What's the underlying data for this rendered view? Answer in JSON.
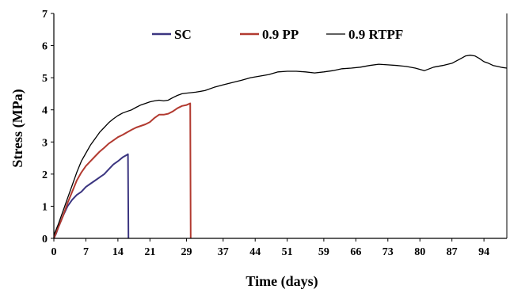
{
  "chart_data": {
    "type": "line",
    "title": "",
    "xlabel": "Time (days)",
    "ylabel": "Stress (MPa)",
    "xlim": [
      0,
      99
    ],
    "ylim": [
      0,
      7
    ],
    "x_ticks": [
      "0",
      "7",
      "14",
      "21",
      "29",
      "37",
      "44",
      "51",
      "59",
      "66",
      "73",
      "80",
      "87",
      "94"
    ],
    "y_ticks": [
      "0",
      "1",
      "2",
      "3",
      "4",
      "5",
      "6",
      "7"
    ],
    "grid": false,
    "legend_position": "top",
    "series": [
      {
        "name": "SC",
        "color": "#3b3580",
        "x": [
          0,
          0.5,
          1,
          2,
          3,
          4,
          5,
          6,
          7,
          8,
          9,
          10,
          11,
          12,
          13,
          14,
          15,
          16,
          16.2,
          16.3
        ],
        "y": [
          0,
          0.15,
          0.35,
          0.7,
          1.0,
          1.2,
          1.35,
          1.45,
          1.6,
          1.7,
          1.8,
          1.9,
          2.0,
          2.15,
          2.3,
          2.4,
          2.52,
          2.6,
          2.62,
          0
        ]
      },
      {
        "name": "0.9 PP",
        "color": "#b23a30",
        "x": [
          0,
          1,
          2,
          3,
          4,
          5,
          6,
          7,
          8,
          9,
          10,
          11,
          12,
          13,
          14,
          15,
          16,
          17,
          18,
          19,
          20,
          21,
          22,
          23,
          24,
          25,
          26,
          27,
          28,
          29,
          29.8,
          29.9
        ],
        "y": [
          0,
          0.35,
          0.7,
          1.1,
          1.45,
          1.8,
          2.05,
          2.25,
          2.4,
          2.55,
          2.7,
          2.82,
          2.95,
          3.05,
          3.15,
          3.22,
          3.3,
          3.38,
          3.45,
          3.5,
          3.55,
          3.62,
          3.75,
          3.85,
          3.85,
          3.88,
          3.95,
          4.05,
          4.12,
          4.15,
          4.2,
          0
        ]
      },
      {
        "name": "0.9 RTPF",
        "color": "#000000",
        "x": [
          0,
          1,
          2,
          3,
          4,
          5,
          6,
          7,
          8,
          9,
          10,
          11,
          12,
          13,
          14,
          15,
          16,
          17,
          18,
          19,
          20,
          21,
          22,
          23,
          24,
          25,
          26,
          27,
          28,
          29,
          31,
          33,
          35,
          37,
          39,
          41,
          43,
          45,
          47,
          49,
          51,
          53,
          55,
          57,
          59,
          61,
          63,
          65,
          67,
          69,
          71,
          73,
          75,
          77,
          79,
          81,
          83,
          85,
          87,
          89,
          90,
          91,
          92,
          93,
          94,
          95,
          96,
          97,
          98,
          99
        ],
        "y": [
          0.1,
          0.45,
          0.85,
          1.25,
          1.65,
          2.05,
          2.4,
          2.65,
          2.9,
          3.1,
          3.3,
          3.45,
          3.6,
          3.72,
          3.82,
          3.9,
          3.95,
          4.0,
          4.08,
          4.15,
          4.2,
          4.25,
          4.28,
          4.3,
          4.28,
          4.3,
          4.38,
          4.45,
          4.5,
          4.52,
          4.55,
          4.6,
          4.7,
          4.78,
          4.85,
          4.92,
          5.0,
          5.05,
          5.1,
          5.18,
          5.2,
          5.2,
          5.18,
          5.15,
          5.18,
          5.22,
          5.28,
          5.3,
          5.33,
          5.38,
          5.42,
          5.4,
          5.38,
          5.35,
          5.3,
          5.22,
          5.33,
          5.38,
          5.45,
          5.6,
          5.68,
          5.7,
          5.68,
          5.6,
          5.5,
          5.45,
          5.38,
          5.35,
          5.32,
          5.3
        ]
      }
    ]
  }
}
